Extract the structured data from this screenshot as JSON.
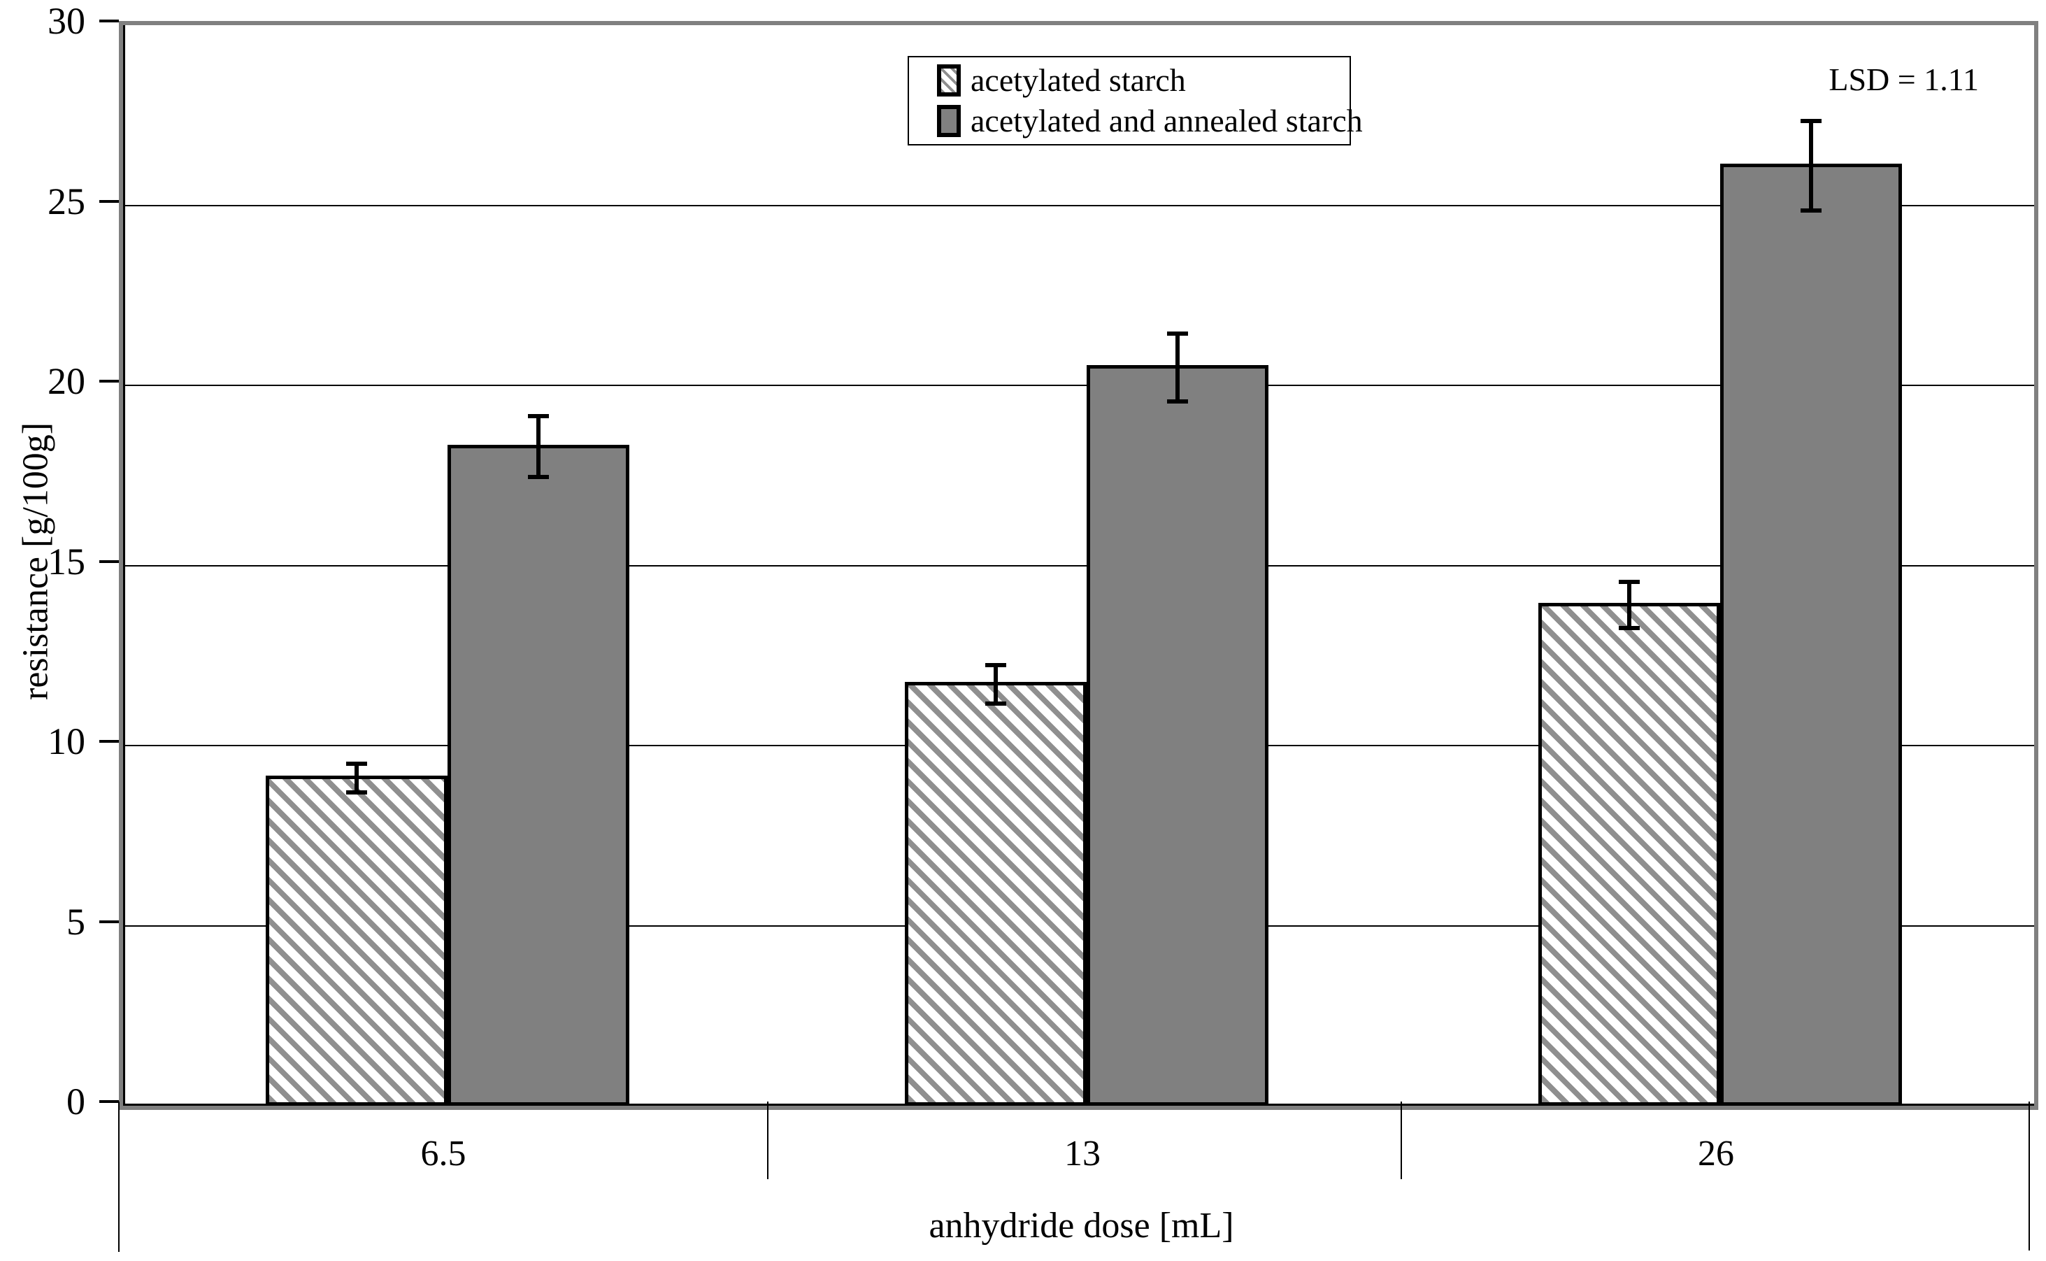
{
  "chart_data": {
    "type": "bar",
    "categories": [
      "6.5",
      "13",
      "26"
    ],
    "series": [
      {
        "name": "acetylated starch",
        "style": "hatched",
        "values": [
          9.1,
          11.7,
          13.9
        ],
        "errors": [
          0.45,
          0.6,
          0.7
        ]
      },
      {
        "name": "acetylated and annealed starch",
        "style": "solid",
        "values": [
          18.3,
          20.5,
          26.1
        ],
        "errors": [
          0.9,
          1.0,
          1.3
        ]
      }
    ],
    "title": "",
    "xlabel": "anhydride dose [mL]",
    "ylabel": "resistance [g/100g]",
    "ylim": [
      0,
      30
    ],
    "ytick_step": 5,
    "yticks": [
      0,
      5,
      10,
      15,
      20,
      25,
      30
    ],
    "grid": true,
    "error_bars": true,
    "legend_position": "top-center",
    "annotation": "LSD = 1.11",
    "colors": {
      "solid_fill": "#808080",
      "hatch_stripe": "#8f8f8f",
      "bar_border": "#000000",
      "plot_border": "#808080",
      "gridline": "#000000",
      "background": "#ffffff"
    }
  }
}
